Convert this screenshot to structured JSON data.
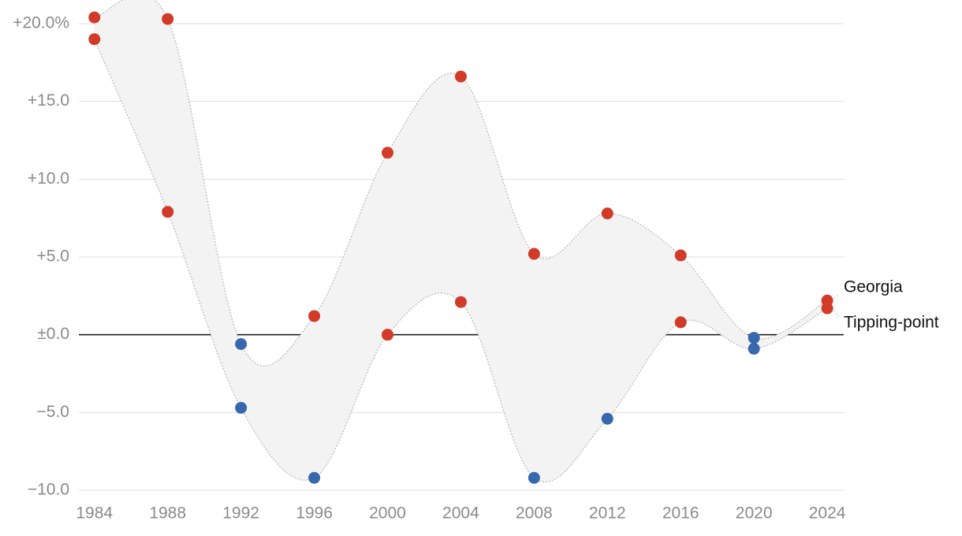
{
  "chart_data": {
    "type": "dumbbell-band",
    "x": [
      1984,
      1988,
      1992,
      1996,
      2000,
      2004,
      2008,
      2012,
      2016,
      2020,
      2024
    ],
    "series": [
      {
        "name": "Georgia",
        "values": [
          20.4,
          20.3,
          -0.6,
          1.2,
          11.7,
          16.6,
          5.2,
          7.8,
          5.1,
          -0.2,
          2.2
        ]
      },
      {
        "name": "Tipping-point",
        "values": [
          19.0,
          7.9,
          -4.7,
          -9.2,
          0.0,
          2.1,
          -9.2,
          -5.4,
          0.8,
          -0.9,
          1.7
        ]
      }
    ],
    "positive_color": "#d13b28",
    "negative_color": "#3767ad",
    "xlim": [
      1983.15,
      2024.9
    ],
    "xticks": [
      1984,
      1988,
      1992,
      1996,
      2000,
      2004,
      2008,
      2012,
      2016,
      2020,
      2024
    ],
    "ylim": [
      -10,
      20
    ],
    "yticks": [
      {
        "value": -10,
        "label": "−10.0"
      },
      {
        "value": -5,
        "label": "−5.0"
      },
      {
        "value": 0,
        "label": "±0.0"
      },
      {
        "value": 5,
        "label": "+5.0"
      },
      {
        "value": 10,
        "label": "+10.0"
      },
      {
        "value": 15,
        "label": "+15.0"
      },
      {
        "value": 20,
        "label": "+20.0%"
      }
    ],
    "grid": true
  }
}
